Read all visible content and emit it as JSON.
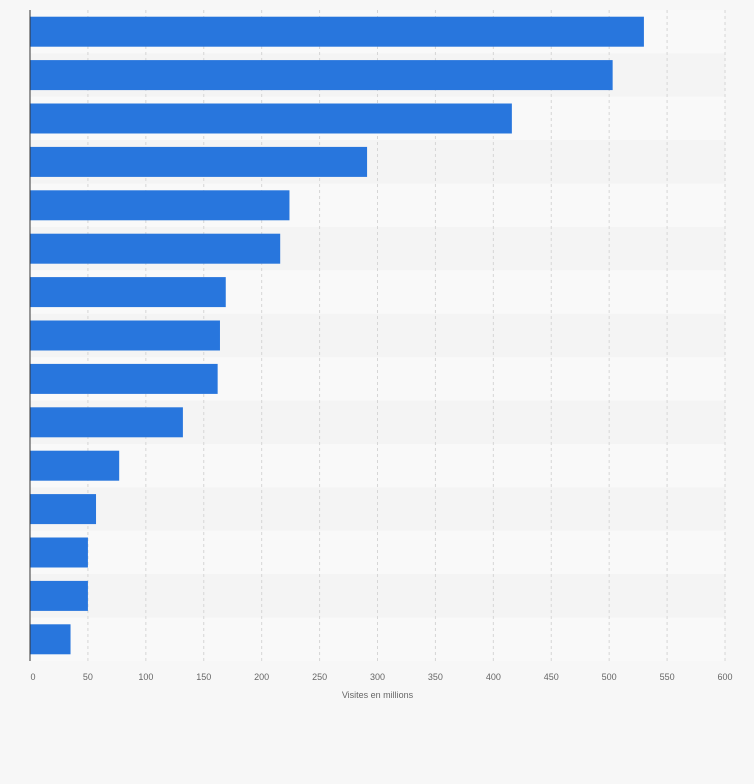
{
  "chart_data": {
    "type": "bar",
    "orientation": "horizontal",
    "categories": [
      "",
      "",
      "",
      "",
      "",
      "",
      "",
      "",
      "",
      "",
      "",
      "",
      "",
      "",
      ""
    ],
    "values": [
      530,
      503,
      416,
      291,
      224,
      216,
      169,
      164,
      162,
      132,
      77,
      57,
      50,
      50,
      35
    ],
    "xlabel": "Visites en millions",
    "ylabel": "",
    "xlim": [
      0,
      600
    ],
    "xticks": [
      0,
      50,
      100,
      150,
      200,
      250,
      300,
      350,
      400,
      450,
      500,
      550,
      600
    ],
    "grid": true,
    "colors": {
      "bar": "#2876dd",
      "band_light": "#f4f4f4",
      "band_alt": "#f9f9f9",
      "grid": "#d6d6d6",
      "axis": "#333333",
      "tick_text": "#666666"
    }
  }
}
